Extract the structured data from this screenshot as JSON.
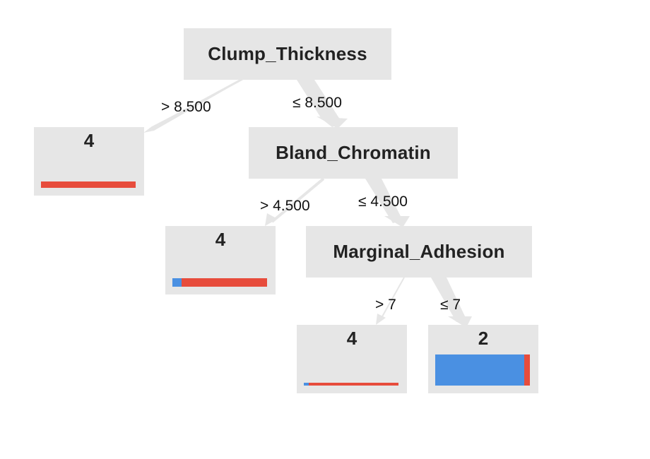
{
  "colors": {
    "node_fill": "#e6e6e6",
    "edge_fill": "#e6e6e6",
    "class_2": "#4a90e2",
    "class_4": "#e74c3c"
  },
  "tree": {
    "root": {
      "feature": "Clump_Thickness",
      "left_edge_label": "> 8.500",
      "right_edge_label": "≤ 8.500"
    },
    "leaf_a": {
      "label": "4",
      "class_fractions": {
        "2": 0.0,
        "4": 1.0
      }
    },
    "node_bland": {
      "feature": "Bland_Chromatin",
      "left_edge_label": "> 4.500",
      "right_edge_label": "≤ 4.500"
    },
    "leaf_b": {
      "label": "4",
      "class_fractions": {
        "2": 0.1,
        "4": 0.9
      }
    },
    "node_marginal": {
      "feature": "Marginal_Adhesion",
      "left_edge_label": "> 7",
      "right_edge_label": "≤ 7"
    },
    "leaf_c": {
      "label": "4",
      "class_fractions": {
        "2": 0.05,
        "4": 0.95
      }
    },
    "leaf_d": {
      "label": "2",
      "class_fractions": {
        "2": 0.94,
        "4": 0.06
      }
    }
  }
}
